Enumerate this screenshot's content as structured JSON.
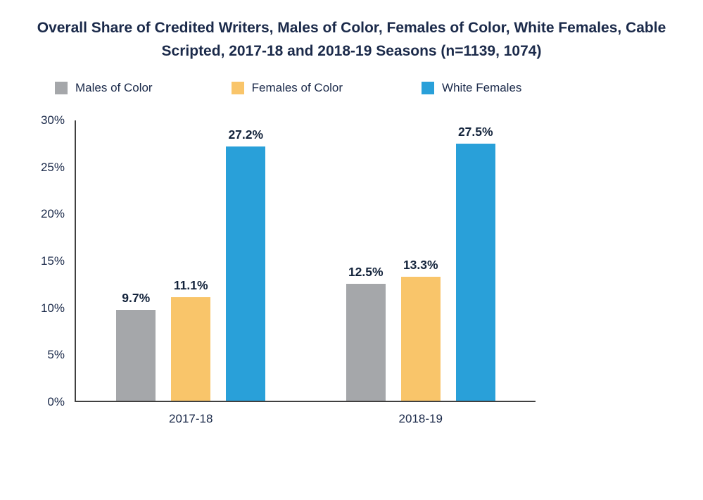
{
  "chart_data": {
    "type": "bar",
    "title": "Overall Share of Credited Writers, Males of Color, Females of Color, White Females, Cable Scripted, 2017-18 and 2018-19 Seasons (n=1139, 1074)",
    "categories": [
      "2017-18",
      "2018-19"
    ],
    "series": [
      {
        "name": "Males of Color",
        "color": "#a5a7aa",
        "values": [
          9.7,
          12.5
        ]
      },
      {
        "name": "Females of Color",
        "color": "#f9c56a",
        "values": [
          11.1,
          13.3
        ]
      },
      {
        "name": "White Females",
        "color": "#29a0d9",
        "values": [
          27.2,
          27.5
        ]
      }
    ],
    "value_labels": [
      [
        "9.7%",
        "11.1%",
        "27.2%"
      ],
      [
        "12.5%",
        "13.3%",
        "27.5%"
      ]
    ],
    "yticks": [
      0,
      5,
      10,
      15,
      20,
      25,
      30
    ],
    "ytick_labels": [
      "0%",
      "5%",
      "10%",
      "15%",
      "20%",
      "25%",
      "30%"
    ],
    "ylim": [
      0,
      30
    ],
    "xlabel": "",
    "ylabel": "",
    "grid": false,
    "legend_position": "top"
  }
}
